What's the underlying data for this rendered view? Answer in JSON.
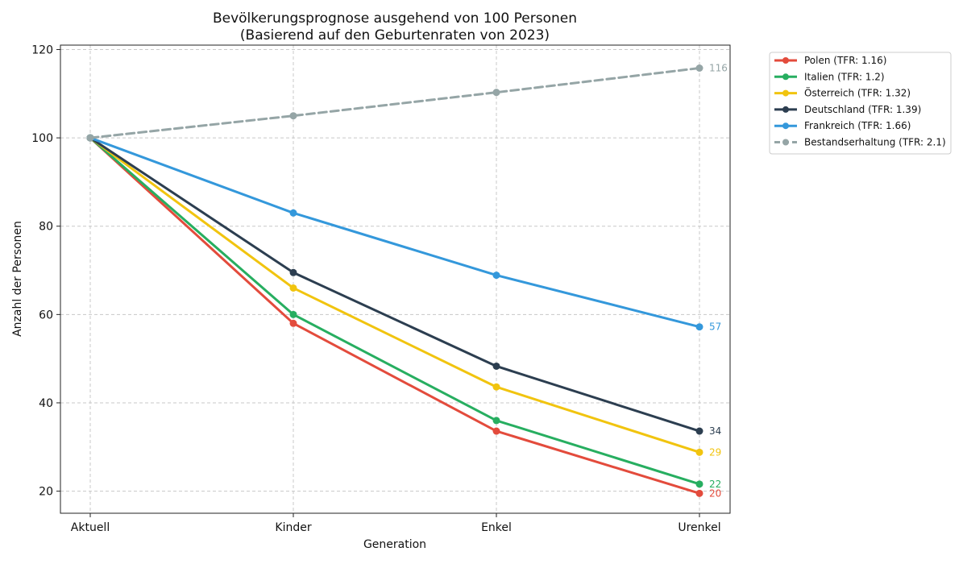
{
  "chart_data": {
    "type": "line",
    "title": "Bevölkerungsprognose ausgehend von 100 Personen",
    "subtitle": "(Basierend auf den Geburtenraten von 2023)",
    "xlabel": "Generation",
    "ylabel": "Anzahl der Personen",
    "categories": [
      "Aktuell",
      "Kinder",
      "Enkel",
      "Urenkel"
    ],
    "ylim": [
      15,
      121
    ],
    "yticks": [
      20,
      40,
      60,
      80,
      100,
      120
    ],
    "grid": true,
    "legend_position": "outside-top-right",
    "series": [
      {
        "name": "Polen (TFR: 1.16)",
        "values": [
          100,
          58,
          33.6,
          19.5
        ],
        "end_label": "20",
        "color": "#e34b3c",
        "dashed": false
      },
      {
        "name": "Italien (TFR: 1.2)",
        "values": [
          100,
          60,
          36,
          21.6
        ],
        "end_label": "22",
        "color": "#27ae60",
        "dashed": false
      },
      {
        "name": "Österreich (TFR: 1.32)",
        "values": [
          100,
          66,
          43.6,
          28.8
        ],
        "end_label": "29",
        "color": "#f1c40f",
        "dashed": false
      },
      {
        "name": "Deutschland (TFR: 1.39)",
        "values": [
          100,
          69.5,
          48.3,
          33.6
        ],
        "end_label": "34",
        "color": "#2c3e50",
        "dashed": false
      },
      {
        "name": "Frankreich (TFR: 1.66)",
        "values": [
          100,
          83,
          68.9,
          57.2
        ],
        "end_label": "57",
        "color": "#3498db",
        "dashed": false
      },
      {
        "name": "Bestandserhaltung (TFR: 2.1)",
        "values": [
          100,
          105,
          110.3,
          115.8
        ],
        "end_label": "116",
        "color": "#95a5a6",
        "dashed": true
      }
    ]
  }
}
